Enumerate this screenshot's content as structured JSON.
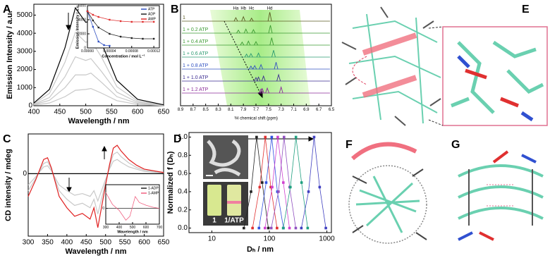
{
  "chart_data": [
    {
      "label": "A",
      "type": "line",
      "xlabel": "Wavelength / nm",
      "ylabel": "Emission Intensity / a.u.",
      "xlim": [
        400,
        650
      ],
      "ylim": [
        0,
        5600
      ],
      "xticks": [
        400,
        450,
        500,
        550,
        600,
        650
      ],
      "yticks": [
        0,
        1000,
        2000,
        3000,
        4000,
        5000
      ],
      "x": [
        400,
        430,
        460,
        480,
        500,
        510,
        530,
        560,
        600,
        650
      ],
      "series": [
        {
          "color": "#c8c8c8",
          "values": [
            40,
            150,
            500,
            850,
            900,
            950,
            700,
            280,
            70,
            10
          ]
        },
        {
          "color": "#c8c8c8",
          "values": [
            60,
            300,
            1000,
            1700,
            1700,
            1800,
            1300,
            500,
            130,
            20
          ]
        },
        {
          "color": "#c8c8c8",
          "values": [
            80,
            450,
            1600,
            2700,
            2500,
            2600,
            1900,
            750,
            190,
            30
          ]
        },
        {
          "color": "#c8c8c8",
          "values": [
            110,
            680,
            2400,
            4050,
            3500,
            3600,
            2700,
            1050,
            260,
            40
          ]
        },
        {
          "color": "#000000",
          "values": [
            150,
            900,
            3200,
            5400,
            4600,
            4700,
            3500,
            1400,
            350,
            50
          ]
        }
      ],
      "inset": {
        "type": "line",
        "xlabel": "Concentration / mol L⁻¹",
        "ylabel": "Emission Intensity / a.u.",
        "xlim": [
          0,
          0.00013
        ],
        "ylim": [
          0,
          6000
        ],
        "xticks": [
          {
            "value": 0,
            "label": "0.00000"
          },
          {
            "value": 4e-05,
            "label": "0.00004"
          },
          {
            "value": 8e-05,
            "label": "0.00008"
          },
          {
            "value": 0.00012,
            "label": "0.00012"
          }
        ],
        "yticks": [
          0,
          2000,
          4000,
          6000
        ],
        "legend": "upper right",
        "series": [
          {
            "name": "ATP",
            "color": "#3050c0",
            "marker": true,
            "x": [
              0,
              1e-05,
              2e-05,
              3e-05,
              4e-05
            ],
            "values": [
              5200,
              3000,
              900,
              400,
              300
            ]
          },
          {
            "name": "ADP",
            "color": "#222222",
            "marker": true,
            "x": [
              0,
              1e-05,
              2e-05,
              4e-05,
              6e-05,
              8e-05,
              0.0001,
              0.00012
            ],
            "values": [
              5200,
              3900,
              2900,
              2000,
              1600,
              1400,
              1300,
              1300
            ]
          },
          {
            "name": "AMP",
            "color": "#e03030",
            "marker": true,
            "x": [
              0,
              1e-05,
              2e-05,
              4e-05,
              6e-05,
              8e-05,
              0.0001,
              0.00012
            ],
            "values": [
              5200,
              4700,
              4400,
              4000,
              3800,
              3700,
              3700,
              3700
            ]
          }
        ]
      }
    },
    {
      "label": "B",
      "type": "stacked-spectra",
      "xlabel": "¹H chemical shift (ppm)",
      "xlim": [
        8.9,
        6.5
      ],
      "xticks": [
        8.9,
        8.7,
        8.5,
        8.3,
        8.1,
        7.9,
        7.7,
        7.5,
        7.3,
        7.1,
        6.9,
        6.7,
        6.5
      ],
      "peak_labels": [
        "Ha",
        "Hb",
        "Hc",
        "Hd"
      ],
      "series": [
        {
          "name": "1",
          "color": "#5a5a20",
          "x": [
            8.02,
            7.9,
            7.77,
            7.48
          ],
          "values": [
            0.35,
            0.45,
            0.3,
            0.9
          ]
        },
        {
          "name": "1 + 0.2 ATP",
          "color": "#3a9a30",
          "x": [
            7.98,
            7.86,
            7.74,
            7.47
          ],
          "values": [
            0.3,
            0.4,
            0.35,
            0.8
          ]
        },
        {
          "name": "1 + 0.4 ATP",
          "color": "#3a9a30",
          "x": [
            7.92,
            7.82,
            7.7,
            7.45
          ],
          "values": [
            0.3,
            0.4,
            0.35,
            0.75
          ]
        },
        {
          "name": "1 + 0.6 ATP",
          "color": "#2a9a70",
          "x": [
            7.85,
            7.78,
            7.66,
            7.42
          ],
          "values": [
            0.3,
            0.35,
            0.4,
            0.7
          ]
        },
        {
          "name": "1 + 0.8 ATP",
          "color": "#3050c0",
          "x": [
            7.78,
            7.72,
            7.62,
            7.38
          ],
          "values": [
            0.3,
            0.35,
            0.45,
            0.7
          ]
        },
        {
          "name": "1 + 1.0 ATP",
          "color": "#3a2a90",
          "x": [
            7.7,
            7.66,
            7.58,
            7.34
          ],
          "values": [
            0.35,
            0.4,
            0.5,
            0.65
          ]
        },
        {
          "name": "1 + 1.2 ATP",
          "color": "#8a2a9a",
          "x": [
            7.62,
            7.6,
            7.52,
            7.3
          ],
          "values": [
            0.4,
            0.45,
            0.5,
            0.6
          ]
        }
      ]
    },
    {
      "label": "C",
      "type": "line",
      "xlabel": "Wavelength / nm",
      "ylabel": "CD intensity / mdeg",
      "xlim": [
        300,
        650
      ],
      "ylim": [
        -110,
        70
      ],
      "xticks": [
        300,
        350,
        400,
        450,
        500,
        550,
        600,
        650
      ],
      "yticks": [
        0
      ],
      "x": [
        300,
        320,
        340,
        350,
        360,
        380,
        400,
        420,
        440,
        460,
        470,
        480,
        500,
        510,
        520,
        530,
        540,
        560,
        580,
        600,
        650
      ],
      "series": [
        {
          "color": "#c8c8c8",
          "values": [
            -20,
            -5,
            12,
            14,
            5,
            -20,
            -30,
            -38,
            -35,
            -40,
            -30,
            -48,
            -10,
            8,
            22,
            25,
            20,
            12,
            8,
            4,
            1
          ]
        },
        {
          "color": "#c8c8c8",
          "values": [
            -30,
            -8,
            18,
            21,
            8,
            -30,
            -45,
            -56,
            -52,
            -60,
            -45,
            -71,
            -15,
            11,
            34,
            38,
            30,
            19,
            11,
            6,
            2
          ]
        },
        {
          "color": "#000000",
          "values": [
            0,
            0,
            0,
            0,
            0,
            0,
            0,
            0,
            0,
            0,
            0,
            0,
            0,
            0,
            0,
            0,
            0,
            0,
            0,
            0,
            0
          ]
        },
        {
          "color": "#e02020",
          "values": [
            -40,
            -10,
            25,
            28,
            10,
            -40,
            -60,
            -75,
            -70,
            -80,
            -60,
            -95,
            -20,
            15,
            45,
            50,
            40,
            25,
            15,
            8,
            2
          ]
        }
      ],
      "inset": {
        "type": "line",
        "xlabel": "Wavelength / nm",
        "xlim": [
          300,
          700
        ],
        "ylim": [
          -40,
          60
        ],
        "xticks": [
          300,
          400,
          500,
          600,
          700
        ],
        "yticks": [
          0
        ],
        "legend": "upper right",
        "x": [
          300,
          350,
          400,
          450,
          480,
          500,
          520,
          550,
          600,
          650,
          700
        ],
        "series": [
          {
            "name": "1-ADP",
            "color": "#222222",
            "values": [
              0,
              0,
              0,
              0,
              0,
              0,
              0,
              0,
              0,
              0,
              0
            ]
          },
          {
            "name": "1-AMP",
            "color": "#f06080",
            "values": [
              40,
              10,
              -5,
              -30,
              -20,
              5,
              30,
              15,
              8,
              3,
              0
            ]
          }
        ]
      }
    },
    {
      "label": "D",
      "type": "line",
      "xlabel": "Dₕ / nm",
      "ylabel": "Normalized f (Dₕ)",
      "xlog": true,
      "xlim": [
        4,
        1200
      ],
      "ylim": [
        -0.05,
        1.05
      ],
      "xticks": [
        10,
        100,
        1000
      ],
      "yticks": [
        {
          "value": 0,
          "label": "0.0"
        },
        0.2,
        0.4,
        0.6,
        0.8,
        {
          "value": 1,
          "label": "1.0"
        }
      ],
      "annotations": [
        "1",
        "1/ATP"
      ],
      "series": [
        {
          "color": "#222222",
          "marker": true,
          "x": [
            36,
            48,
            60,
            75,
            96
          ],
          "values": [
            0,
            0.4,
            1,
            0.5,
            0
          ]
        },
        {
          "color": "#e03030",
          "marker": true,
          "x": [
            51,
            68,
            85,
            106,
            136
          ],
          "values": [
            0,
            0.45,
            1,
            0.45,
            0
          ]
        },
        {
          "color": "#3050e0",
          "marker": true,
          "x": [
            66,
            88,
            110,
            138,
            176
          ],
          "values": [
            0,
            0.5,
            1,
            0.4,
            0
          ]
        },
        {
          "color": "#d040d0",
          "marker": true,
          "x": [
            84,
            112,
            140,
            175,
            224
          ],
          "values": [
            0,
            0.45,
            1,
            0.5,
            0
          ]
        },
        {
          "color": "#9050c0",
          "marker": true,
          "x": [
            108,
            144,
            180,
            225,
            288
          ],
          "values": [
            0,
            0.4,
            1,
            0.45,
            0
          ]
        },
        {
          "color": "#20a080",
          "marker": true,
          "x": [
            174,
            232,
            290,
            363,
            464
          ],
          "values": [
            0,
            0.45,
            1,
            0.5,
            0
          ]
        },
        {
          "color": "#4040c0",
          "marker": true,
          "x": [
            360,
            480,
            600,
            750,
            960
          ],
          "values": [
            0,
            0.4,
            1,
            0.45,
            0
          ]
        }
      ]
    }
  ],
  "images": {
    "labels": [
      "E",
      "F",
      "G"
    ]
  }
}
